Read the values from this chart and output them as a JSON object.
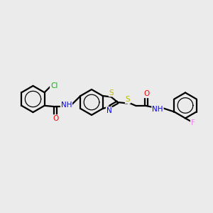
{
  "background_color": "#ebebeb",
  "line_color": "#000000",
  "bond_width": 1.6,
  "atom_colors": {
    "Cl": "#00bb00",
    "N": "#0000ff",
    "O": "#ff0000",
    "S": "#bbbb00",
    "F": "#ee82ee",
    "C": "#000000",
    "H": "#5599aa"
  },
  "figsize": [
    3.0,
    3.0
  ],
  "dpi": 100
}
